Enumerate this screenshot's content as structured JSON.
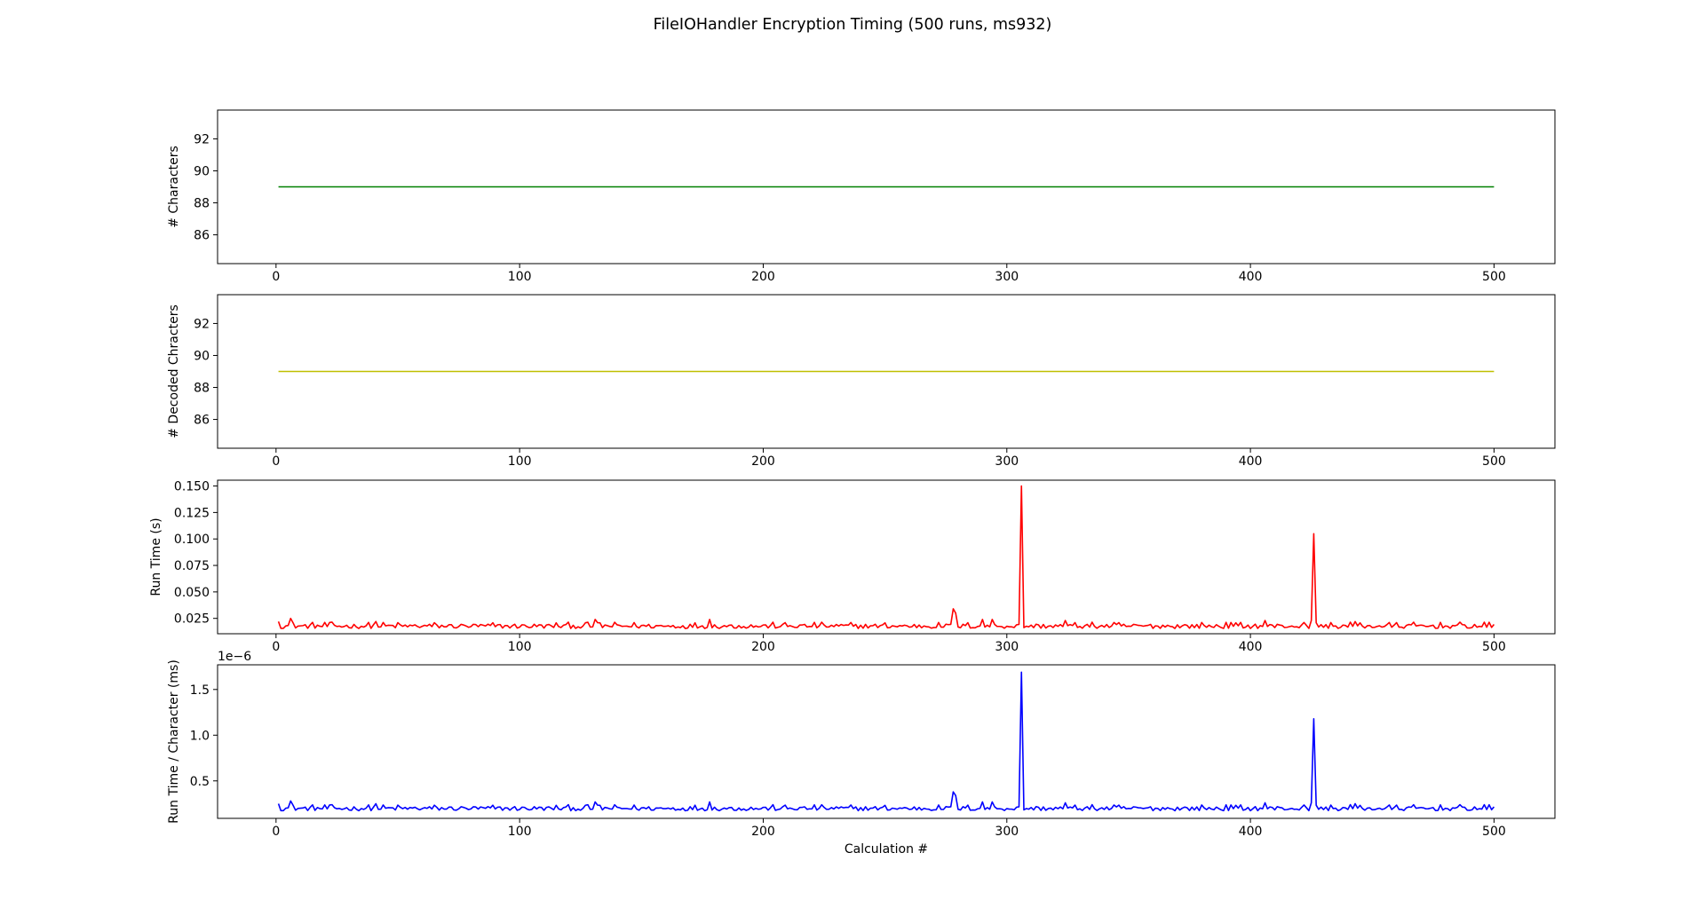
{
  "figure_title": "FileIOHandler Encryption Timing (500 runs, ms932)",
  "chart_data": [
    {
      "type": "line",
      "title": "",
      "xlabel": "",
      "ylabel": "# Characters",
      "xlim": [
        -24,
        525
      ],
      "ylim": [
        84.2,
        93.8
      ],
      "x_ticks": [
        0,
        100,
        200,
        300,
        400,
        500
      ],
      "y_ticks": [
        86,
        88,
        90,
        92
      ],
      "offset_text": "",
      "grid": false,
      "series": [
        {
          "color": "#008000",
          "x_range": [
            1,
            500
          ],
          "constant_value": 89
        }
      ]
    },
    {
      "type": "line",
      "title": "",
      "xlabel": "",
      "ylabel": "# Decoded Chracters",
      "xlim": [
        -24,
        525
      ],
      "ylim": [
        84.2,
        93.8
      ],
      "x_ticks": [
        0,
        100,
        200,
        300,
        400,
        500
      ],
      "y_ticks": [
        86,
        88,
        90,
        92
      ],
      "offset_text": "",
      "grid": false,
      "series": [
        {
          "color": "#bfbf00",
          "x_range": [
            1,
            500
          ],
          "constant_value": 89
        }
      ]
    },
    {
      "type": "line",
      "title": "",
      "xlabel": "",
      "ylabel": "Run Time (s)",
      "xlim": [
        -24,
        525
      ],
      "ylim": [
        0.0105,
        0.1555
      ],
      "x_ticks": [
        0,
        100,
        200,
        300,
        400,
        500
      ],
      "y_ticks": [
        0.025,
        0.05,
        0.075,
        0.1,
        0.125,
        0.15
      ],
      "y_tick_labels": [
        "0.025",
        "0.050",
        "0.075",
        "0.100",
        "0.125",
        "0.150"
      ],
      "offset_text": "",
      "grid": false,
      "series": [
        {
          "color": "#ff0000",
          "x_range": [
            1,
            500
          ],
          "baseline": 0.0175,
          "noise_amplitude": 0.0045,
          "spikes": [
            {
              "x": 1,
              "y": 0.022
            },
            {
              "x": 6,
              "y": 0.025
            },
            {
              "x": 41,
              "y": 0.022
            },
            {
              "x": 131,
              "y": 0.024
            },
            {
              "x": 178,
              "y": 0.024
            },
            {
              "x": 278,
              "y": 0.034
            },
            {
              "x": 279,
              "y": 0.03
            },
            {
              "x": 290,
              "y": 0.024
            },
            {
              "x": 294,
              "y": 0.024
            },
            {
              "x": 306,
              "y": 0.15
            },
            {
              "x": 324,
              "y": 0.023
            },
            {
              "x": 406,
              "y": 0.023
            },
            {
              "x": 425,
              "y": 0.023
            },
            {
              "x": 426,
              "y": 0.105
            },
            {
              "x": 443,
              "y": 0.022
            }
          ]
        }
      ]
    },
    {
      "type": "line",
      "title": "",
      "xlabel": "Calculation #",
      "ylabel": "Run Time / Character (ms)",
      "xlim": [
        -24,
        525
      ],
      "ylim": [
        9e-08,
        1.77e-06
      ],
      "x_ticks": [
        0,
        100,
        200,
        300,
        400,
        500
      ],
      "y_ticks": [
        5e-07,
        1e-06,
        1.5e-06
      ],
      "y_tick_labels": [
        "0.5",
        "1.0",
        "1.5"
      ],
      "offset_text": "1e−6",
      "grid": false,
      "series": [
        {
          "color": "#0000ff",
          "x_range": [
            1,
            500
          ],
          "baseline": 1.96e-07,
          "noise_amplitude": 5e-08,
          "spikes": [
            {
              "x": 1,
              "y": 2.5e-07
            },
            {
              "x": 6,
              "y": 2.8e-07
            },
            {
              "x": 41,
              "y": 2.5e-07
            },
            {
              "x": 131,
              "y": 2.7e-07
            },
            {
              "x": 178,
              "y": 2.7e-07
            },
            {
              "x": 278,
              "y": 3.8e-07
            },
            {
              "x": 279,
              "y": 3.4e-07
            },
            {
              "x": 290,
              "y": 2.7e-07
            },
            {
              "x": 294,
              "y": 2.7e-07
            },
            {
              "x": 306,
              "y": 1.69e-06
            },
            {
              "x": 324,
              "y": 2.6e-07
            },
            {
              "x": 406,
              "y": 2.6e-07
            },
            {
              "x": 425,
              "y": 2.6e-07
            },
            {
              "x": 426,
              "y": 1.18e-06
            },
            {
              "x": 443,
              "y": 2.5e-07
            }
          ]
        }
      ]
    }
  ]
}
